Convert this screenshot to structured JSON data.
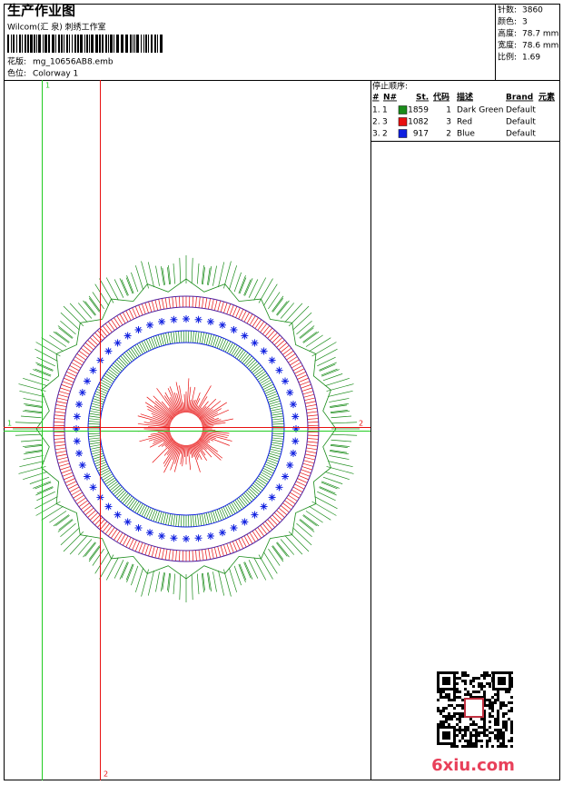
{
  "header": {
    "title": "生产作业图",
    "studio": "Wilcom(汇 泉) 刺绣工作室",
    "file_label": "花版:",
    "file": "mg_10656AB8.emb",
    "colorway_label": "色位:",
    "colorway": "Colorway 1"
  },
  "stats": [
    {
      "label": "针数:",
      "value": "3860"
    },
    {
      "label": "颜色:",
      "value": "3"
    },
    {
      "label": "高度:",
      "value": "78.7 mm"
    },
    {
      "label": "宽度:",
      "value": "78.6 mm"
    },
    {
      "label": "比例:",
      "value": "1.69"
    }
  ],
  "stop_sequence": {
    "title": "停止顺序:",
    "columns": [
      "#",
      "N#",
      "St.",
      "代码",
      "描述",
      "Brand",
      "元素"
    ],
    "rows": [
      {
        "step": "1.",
        "n": "1",
        "color": "#1a8c1a",
        "stitches": "1859",
        "code": "1",
        "description": "Dark Green",
        "brand": "Default"
      },
      {
        "step": "2.",
        "n": "3",
        "color": "#e81010",
        "stitches": "1082",
        "code": "3",
        "description": "Red",
        "brand": "Default"
      },
      {
        "step": "3.",
        "n": "2",
        "color": "#1020e0",
        "stitches": "917",
        "code": "2",
        "description": "Blue",
        "brand": "Default"
      }
    ]
  },
  "guides": {
    "green_top": "1",
    "green_left": "1",
    "red_bottom": "2",
    "red_right": "2"
  },
  "watermark": "6xiu.com"
}
